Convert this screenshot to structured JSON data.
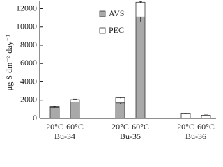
{
  "chart_data": {
    "type": "stacked-bar",
    "y_label": "µg S dm⁻³ day⁻¹",
    "categories": [
      "20°C",
      "60°C",
      "20°C",
      "60°C",
      "20°C",
      "60°C"
    ],
    "groups": [
      "Bu-34",
      "Bu-35",
      "Bu-36"
    ],
    "series": [
      {
        "name": "AVS",
        "color": "#a9a9a9",
        "values": [
          1200,
          1800,
          1700,
          11100,
          0,
          0
        ],
        "errors": [
          60,
          150,
          100,
          500,
          0,
          0
        ]
      },
      {
        "name": "PEC",
        "color": "#ffffff",
        "values": [
          50,
          250,
          550,
          1600,
          500,
          350
        ],
        "errors": [
          30,
          60,
          60,
          80,
          30,
          30
        ]
      }
    ],
    "ylim": [
      0,
      12800
    ],
    "yticks": [
      0,
      2000,
      4000,
      6000,
      8000,
      10000,
      12000
    ],
    "legend": "top-left",
    "grid": false
  }
}
